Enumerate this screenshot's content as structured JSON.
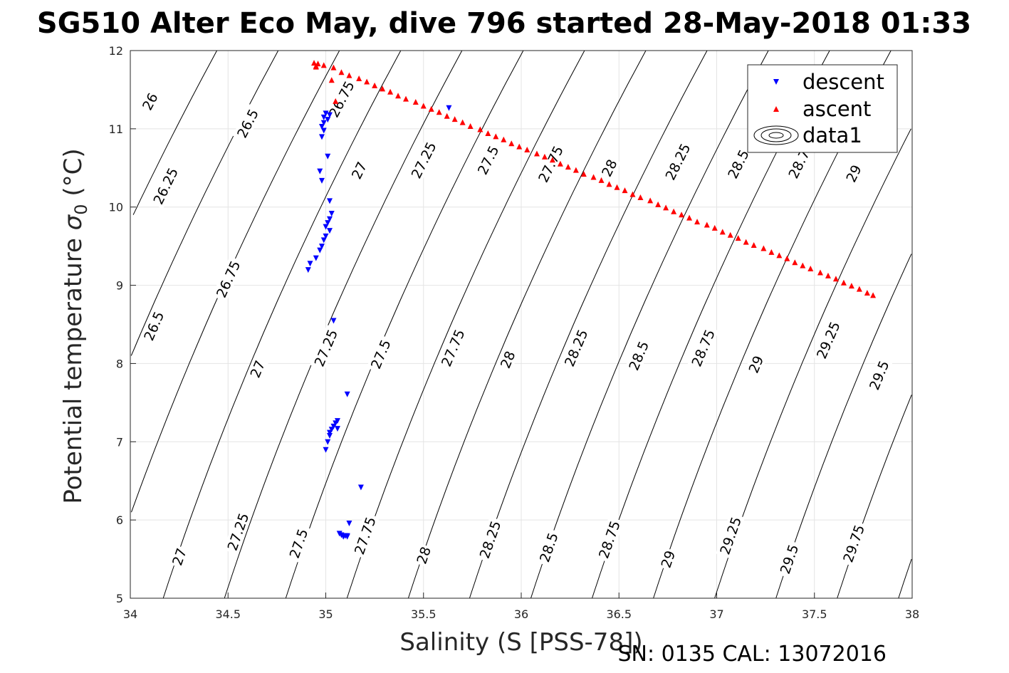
{
  "title": "SG510 Alter Eco May, dive 796 started 28-May-2018 01:33",
  "footer": "SN: 0135  CAL: 13072016",
  "chart_data": {
    "type": "scatter",
    "xlabel": "Salinity (S [PSS-78])",
    "ylabel_prefix": "Potential temperature ",
    "ylabel_symbol": "σ",
    "ylabel_sub": "0",
    "ylabel_suffix": " (°C)",
    "xlim": [
      34,
      38
    ],
    "ylim": [
      5,
      12
    ],
    "xticks": [
      34,
      34.5,
      35,
      35.5,
      36,
      36.5,
      37,
      37.5,
      38
    ],
    "yticks": [
      5,
      6,
      7,
      8,
      9,
      10,
      11,
      12
    ],
    "grid": true,
    "legend": {
      "position": "top-right",
      "entries": [
        "descent",
        "ascent",
        "data1"
      ]
    },
    "series": [
      {
        "name": "descent",
        "marker": "triangle-down",
        "color": "#0000ff",
        "points": [
          [
            35.63,
            11.27
          ],
          [
            35.0,
            11.2
          ],
          [
            35.02,
            11.18
          ],
          [
            34.99,
            11.15
          ],
          [
            35.01,
            11.12
          ],
          [
            34.99,
            11.08
          ],
          [
            34.98,
            11.03
          ],
          [
            34.99,
            10.98
          ],
          [
            34.98,
            10.9
          ],
          [
            35.01,
            10.65
          ],
          [
            34.97,
            10.46
          ],
          [
            34.98,
            10.34
          ],
          [
            35.02,
            10.08
          ],
          [
            35.03,
            9.92
          ],
          [
            35.02,
            9.85
          ],
          [
            35.01,
            9.8
          ],
          [
            35.0,
            9.75
          ],
          [
            35.02,
            9.7
          ],
          [
            35.0,
            9.63
          ],
          [
            34.99,
            9.58
          ],
          [
            34.98,
            9.5
          ],
          [
            34.97,
            9.45
          ],
          [
            34.95,
            9.35
          ],
          [
            34.92,
            9.28
          ],
          [
            34.91,
            9.2
          ],
          [
            35.04,
            8.55
          ],
          [
            35.11,
            7.61
          ],
          [
            35.06,
            7.27
          ],
          [
            35.05,
            7.24
          ],
          [
            35.04,
            7.2
          ],
          [
            35.06,
            7.17
          ],
          [
            35.03,
            7.16
          ],
          [
            35.02,
            7.12
          ],
          [
            35.02,
            7.08
          ],
          [
            35.01,
            7.0
          ],
          [
            35.0,
            6.9
          ],
          [
            35.18,
            6.42
          ],
          [
            35.12,
            5.96
          ],
          [
            35.07,
            5.83
          ],
          [
            35.08,
            5.81
          ],
          [
            35.09,
            5.8
          ],
          [
            35.1,
            5.8
          ],
          [
            35.11,
            5.8
          ],
          [
            35.09,
            5.79
          ],
          [
            35.11,
            5.79
          ]
        ]
      },
      {
        "name": "ascent",
        "marker": "triangle-up",
        "color": "#ff0000",
        "points": [
          [
            34.94,
            11.84
          ],
          [
            34.95,
            11.8
          ],
          [
            34.96,
            11.83
          ],
          [
            34.95,
            11.79
          ],
          [
            34.99,
            11.81
          ],
          [
            35.04,
            11.78
          ],
          [
            35.08,
            11.72
          ],
          [
            35.12,
            11.68
          ],
          [
            35.17,
            11.64
          ],
          [
            35.21,
            11.6
          ],
          [
            35.25,
            11.55
          ],
          [
            35.29,
            11.51
          ],
          [
            35.33,
            11.47
          ],
          [
            35.37,
            11.42
          ],
          [
            35.41,
            11.38
          ],
          [
            35.46,
            11.34
          ],
          [
            35.5,
            11.29
          ],
          [
            35.54,
            11.25
          ],
          [
            35.58,
            11.21
          ],
          [
            35.62,
            11.16
          ],
          [
            35.66,
            11.12
          ],
          [
            35.7,
            11.08
          ],
          [
            35.74,
            11.03
          ],
          [
            35.79,
            10.99
          ],
          [
            35.83,
            10.94
          ],
          [
            35.87,
            10.9
          ],
          [
            35.91,
            10.86
          ],
          [
            35.95,
            10.81
          ],
          [
            35.99,
            10.77
          ],
          [
            36.03,
            10.73
          ],
          [
            36.08,
            10.68
          ],
          [
            36.12,
            10.64
          ],
          [
            36.16,
            10.6
          ],
          [
            36.2,
            10.55
          ],
          [
            36.24,
            10.51
          ],
          [
            36.28,
            10.47
          ],
          [
            36.32,
            10.42
          ],
          [
            36.37,
            10.38
          ],
          [
            36.41,
            10.34
          ],
          [
            36.45,
            10.29
          ],
          [
            36.49,
            10.25
          ],
          [
            36.53,
            10.21
          ],
          [
            36.57,
            10.16
          ],
          [
            36.61,
            10.12
          ],
          [
            36.66,
            10.08
          ],
          [
            36.7,
            10.03
          ],
          [
            36.74,
            9.99
          ],
          [
            36.78,
            9.94
          ],
          [
            36.82,
            9.9
          ],
          [
            36.86,
            9.86
          ],
          [
            36.9,
            9.81
          ],
          [
            36.95,
            9.77
          ],
          [
            36.99,
            9.73
          ],
          [
            37.03,
            9.68
          ],
          [
            37.07,
            9.64
          ],
          [
            37.11,
            9.6
          ],
          [
            37.15,
            9.55
          ],
          [
            37.19,
            9.51
          ],
          [
            37.24,
            9.47
          ],
          [
            37.28,
            9.42
          ],
          [
            37.32,
            9.38
          ],
          [
            37.36,
            9.34
          ],
          [
            37.4,
            9.29
          ],
          [
            37.44,
            9.25
          ],
          [
            37.48,
            9.21
          ],
          [
            37.53,
            9.16
          ],
          [
            37.57,
            9.12
          ],
          [
            37.61,
            9.08
          ],
          [
            37.65,
            9.03
          ],
          [
            37.69,
            8.99
          ],
          [
            37.73,
            8.95
          ],
          [
            37.77,
            8.9
          ],
          [
            37.8,
            8.87
          ],
          [
            35.03,
            11.62
          ],
          [
            35.05,
            11.35
          ]
        ]
      }
    ],
    "contour_levels": [
      {
        "value": 26.0,
        "label": "26",
        "label_at": [
          [
            34.1,
            11.35
          ]
        ]
      },
      {
        "value": 26.25,
        "label": "26.25",
        "label_at": [
          [
            34.18,
            10.27
          ]
        ]
      },
      {
        "value": 26.5,
        "label": "26.5",
        "label_at": [
          [
            34.6,
            11.07
          ],
          [
            34.12,
            8.48
          ]
        ]
      },
      {
        "value": 26.75,
        "label": "26.75",
        "label_at": [
          [
            35.08,
            11.38
          ],
          [
            34.5,
            9.08
          ]
        ]
      },
      {
        "value": 27.0,
        "label": "27",
        "label_at": [
          [
            35.17,
            10.47
          ],
          [
            34.65,
            7.93
          ],
          [
            34.25,
            5.53
          ]
        ]
      },
      {
        "value": 27.25,
        "label": "27.25",
        "label_at": [
          [
            35.5,
            10.6
          ],
          [
            35.0,
            8.2
          ],
          [
            34.55,
            5.85
          ]
        ]
      },
      {
        "value": 27.5,
        "label": "27.5",
        "label_at": [
          [
            35.83,
            10.6
          ],
          [
            35.28,
            8.12
          ],
          [
            34.86,
            5.7
          ]
        ]
      },
      {
        "value": 27.75,
        "label": "27.75",
        "label_at": [
          [
            36.15,
            10.55
          ],
          [
            35.65,
            8.2
          ],
          [
            35.2,
            5.8
          ]
        ]
      },
      {
        "value": 28.0,
        "label": "28",
        "label_at": [
          [
            36.45,
            10.5
          ],
          [
            35.93,
            8.05
          ],
          [
            35.5,
            5.55
          ]
        ]
      },
      {
        "value": 28.25,
        "label": "28.25",
        "label_at": [
          [
            36.8,
            10.58
          ],
          [
            36.28,
            8.2
          ],
          [
            35.84,
            5.75
          ]
        ]
      },
      {
        "value": 28.5,
        "label": "28.5",
        "label_at": [
          [
            37.11,
            10.55
          ],
          [
            36.6,
            8.1
          ],
          [
            36.14,
            5.65
          ]
        ]
      },
      {
        "value": 28.75,
        "label": "28.75",
        "label_at": [
          [
            37.43,
            10.6
          ],
          [
            36.93,
            8.2
          ],
          [
            36.45,
            5.75
          ]
        ]
      },
      {
        "value": 29.0,
        "label": "29",
        "label_at": [
          [
            37.7,
            10.43
          ],
          [
            37.2,
            7.99
          ],
          [
            36.75,
            5.5
          ]
        ]
      },
      {
        "value": 29.25,
        "label": "29.25",
        "label_at": [
          [
            37.57,
            8.3
          ],
          [
            37.07,
            5.8
          ]
        ]
      },
      {
        "value": 29.5,
        "label": "29.5",
        "label_at": [
          [
            37.83,
            7.85
          ],
          [
            37.37,
            5.5
          ]
        ]
      },
      {
        "value": 29.75,
        "label": "29.75",
        "label_at": [
          [
            37.7,
            5.7
          ]
        ]
      },
      {
        "value": 30.0,
        "label": "",
        "label_at": []
      }
    ]
  }
}
